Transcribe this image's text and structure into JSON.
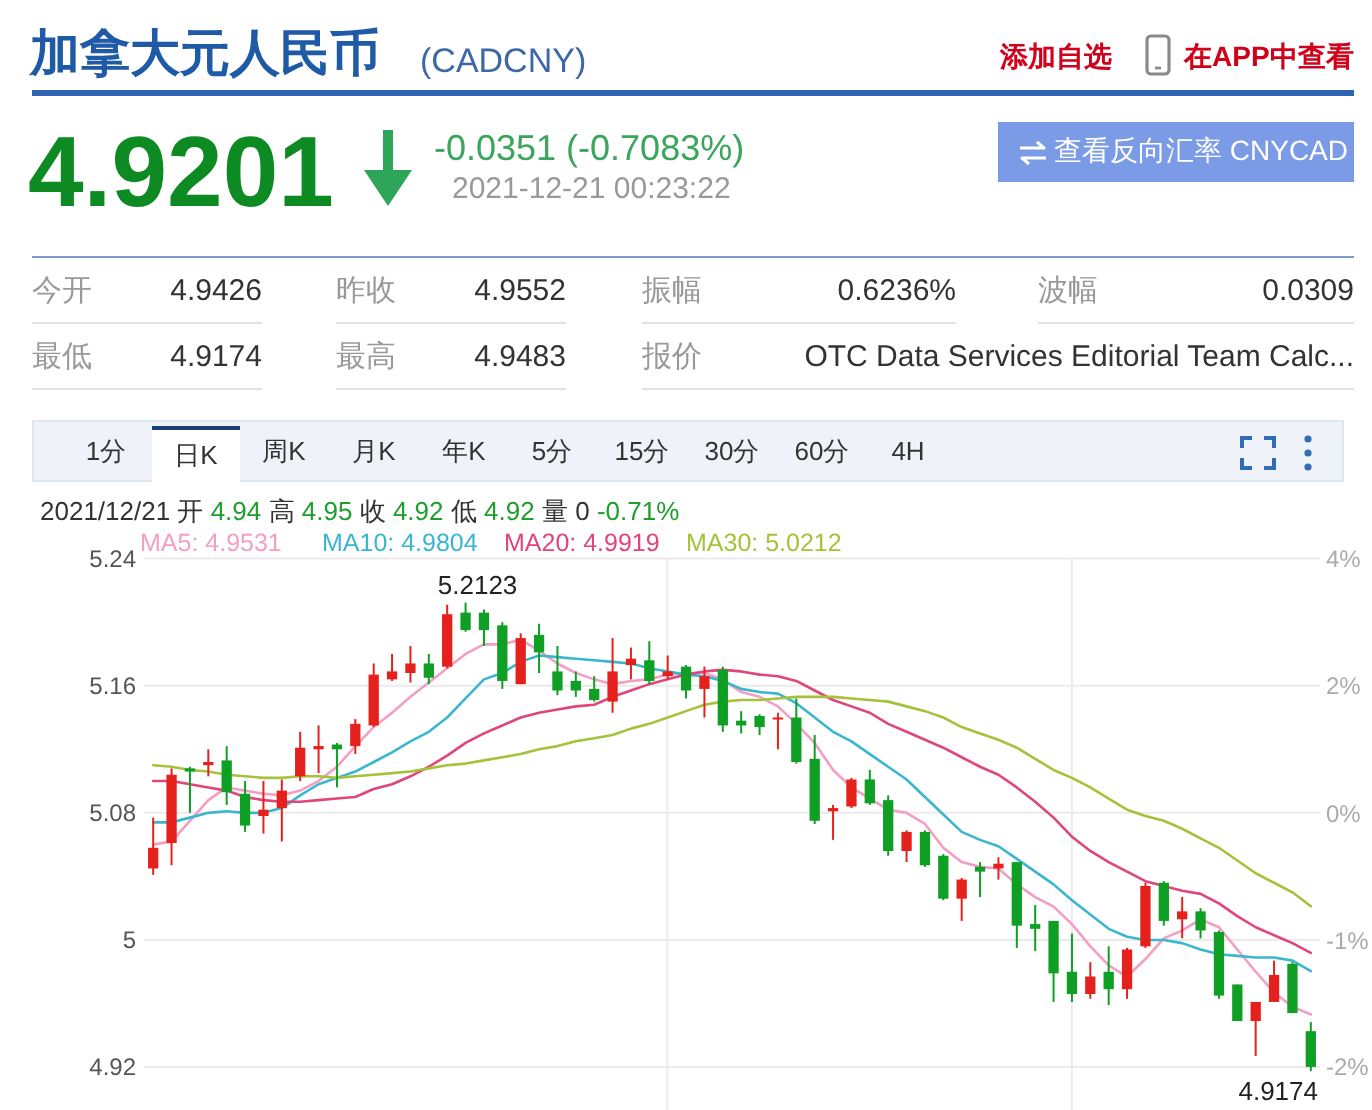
{
  "chart_data": {
    "type": "candlestick",
    "title": "加拿大元人民币",
    "subtitle": "(CADCNY)",
    "categories": [
      null,
      null,
      null,
      null,
      null,
      null,
      null,
      null,
      null,
      null,
      null,
      null,
      null,
      null,
      null,
      null,
      null,
      null,
      null,
      null,
      null,
      null,
      null,
      null,
      null,
      null,
      null,
      null,
      null,
      null,
      null,
      null,
      null,
      null,
      null,
      null,
      null,
      null,
      null,
      null,
      null,
      null,
      null,
      null,
      null,
      null,
      null,
      null,
      null,
      null,
      null,
      null,
      null,
      null,
      null,
      null,
      null,
      null,
      null,
      null,
      null,
      null,
      null,
      null
    ],
    "ohlc": [
      [
        5.045,
        5.077,
        5.041,
        5.058
      ],
      [
        5.061,
        5.108,
        5.047,
        5.104
      ],
      [
        5.108,
        5.109,
        5.08,
        5.106
      ],
      [
        5.11,
        5.12,
        5.103,
        5.112
      ],
      [
        5.113,
        5.122,
        5.085,
        5.093
      ],
      [
        5.092,
        5.1,
        5.068,
        5.072
      ],
      [
        5.078,
        5.1,
        5.067,
        5.082
      ],
      [
        5.083,
        5.101,
        5.062,
        5.094
      ],
      [
        5.103,
        5.131,
        5.1,
        5.121
      ],
      [
        5.12,
        5.135,
        5.105,
        5.122
      ],
      [
        5.123,
        5.124,
        5.096,
        5.12
      ],
      [
        5.122,
        5.139,
        5.117,
        5.136
      ],
      [
        5.135,
        5.174,
        5.134,
        5.167
      ],
      [
        5.164,
        5.18,
        5.163,
        5.169
      ],
      [
        5.168,
        5.185,
        5.162,
        5.174
      ],
      [
        5.174,
        5.18,
        5.161,
        5.165
      ],
      [
        5.172,
        5.211,
        5.171,
        5.205
      ],
      [
        5.206,
        5.2123,
        5.194,
        5.195
      ],
      [
        5.206,
        5.208,
        5.185,
        5.195
      ],
      [
        5.198,
        5.2,
        5.158,
        5.163
      ],
      [
        5.161,
        5.193,
        5.161,
        5.19
      ],
      [
        5.192,
        5.199,
        5.168,
        5.181
      ],
      [
        5.169,
        5.185,
        5.154,
        5.157
      ],
      [
        5.163,
        5.169,
        5.153,
        5.157
      ],
      [
        5.158,
        5.166,
        5.15,
        5.151
      ],
      [
        5.15,
        5.19,
        5.143,
        5.169
      ],
      [
        5.173,
        5.184,
        5.164,
        5.177
      ],
      [
        5.176,
        5.188,
        5.161,
        5.163
      ],
      [
        5.166,
        5.179,
        5.164,
        5.169
      ],
      [
        5.172,
        5.173,
        5.152,
        5.157
      ],
      [
        5.158,
        5.172,
        5.14,
        5.166
      ],
      [
        5.17,
        5.172,
        5.131,
        5.135
      ],
      [
        5.138,
        5.144,
        5.13,
        5.135
      ],
      [
        5.141,
        5.142,
        5.129,
        5.134
      ],
      [
        5.139,
        5.143,
        5.12,
        5.14
      ],
      [
        5.14,
        5.152,
        5.111,
        5.112
      ],
      [
        5.114,
        5.129,
        5.073,
        5.075
      ],
      [
        5.081,
        5.085,
        5.063,
        5.083
      ],
      [
        5.084,
        5.102,
        5.083,
        5.101
      ],
      [
        5.101,
        5.107,
        5.085,
        5.086
      ],
      [
        5.088,
        5.091,
        5.053,
        5.056
      ],
      [
        5.056,
        5.069,
        5.049,
        5.068
      ],
      [
        5.068,
        5.069,
        5.046,
        5.047
      ],
      [
        5.053,
        5.054,
        5.025,
        5.026
      ],
      [
        5.026,
        5.039,
        5.012,
        5.038
      ],
      [
        5.046,
        5.049,
        5.027,
        5.043
      ],
      [
        5.045,
        5.052,
        5.038,
        5.048
      ],
      [
        5.049,
        5.049,
        4.995,
        5.009
      ],
      [
        5.01,
        5.022,
        4.993,
        5.007
      ],
      [
        5.012,
        5.012,
        4.961,
        4.979
      ],
      [
        4.98,
        5.004,
        4.961,
        4.966
      ],
      [
        4.966,
        4.986,
        4.963,
        4.977
      ],
      [
        4.98,
        4.996,
        4.959,
        4.969
      ],
      [
        4.969,
        4.995,
        4.963,
        4.994
      ],
      [
        4.996,
        5.036,
        4.995,
        5.034
      ],
      [
        5.036,
        5.037,
        5.009,
        5.012
      ],
      [
        5.013,
        5.027,
        5.001,
        5.018
      ],
      [
        5.018,
        5.02,
        5.001,
        5.006
      ],
      [
        5.005,
        5.006,
        4.963,
        4.965
      ],
      [
        4.972,
        4.972,
        4.949,
        4.949
      ],
      [
        4.949,
        4.961,
        4.927,
        4.961
      ],
      [
        4.961,
        4.987,
        4.961,
        4.978
      ],
      [
        4.985,
        4.986,
        4.954,
        4.954
      ],
      [
        4.9426,
        4.9483,
        4.9174,
        4.9201
      ]
    ],
    "colors": [
      "#e5211d",
      "#e5211d",
      "#0e9f24",
      "#e5211d",
      "#0e9f24",
      "#0e9f24",
      "#e5211d",
      "#e5211d",
      "#e5211d",
      "#e5211d",
      "#0e9f24",
      "#e5211d",
      "#e5211d",
      "#e5211d",
      "#e5211d",
      "#0e9f24",
      "#e5211d",
      "#0e9f24",
      "#0e9f24",
      "#0e9f24",
      "#e5211d",
      "#0e9f24",
      "#0e9f24",
      "#0e9f24",
      "#0e9f24",
      "#e5211d",
      "#e5211d",
      "#0e9f24",
      "#e5211d",
      "#0e9f24",
      "#e5211d",
      "#0e9f24",
      "#0e9f24",
      "#0e9f24",
      "#e5211d",
      "#0e9f24",
      "#0e9f24",
      "#e5211d",
      "#e5211d",
      "#0e9f24",
      "#0e9f24",
      "#e5211d",
      "#0e9f24",
      "#0e9f24",
      "#e5211d",
      "#0e9f24",
      "#e5211d",
      "#0e9f24",
      "#0e9f24",
      "#0e9f24",
      "#0e9f24",
      "#e5211d",
      "#0e9f24",
      "#e5211d",
      "#e5211d",
      "#0e9f24",
      "#e5211d",
      "#0e9f24",
      "#0e9f24",
      "#0e9f24",
      "#e5211d",
      "#e5211d",
      "#0e9f24",
      "#0e9f24"
    ],
    "series": [
      {
        "type": "line",
        "name": "MA5: 4.9531",
        "color": "#f29fc3",
        "values": [
          5.06,
          5.062,
          5.075,
          5.088,
          5.096,
          5.094,
          5.092,
          5.091,
          5.094,
          5.1,
          5.109,
          5.122,
          5.134,
          5.143,
          5.153,
          5.162,
          5.171,
          5.18,
          5.186,
          5.186,
          5.189,
          5.182,
          5.174,
          5.168,
          5.164,
          5.161,
          5.163,
          5.164,
          5.167,
          5.168,
          5.168,
          5.164,
          5.156,
          5.153,
          5.147,
          5.136,
          5.124,
          5.107,
          5.096,
          5.089,
          5.082,
          5.08,
          5.073,
          5.058,
          5.049,
          5.046,
          5.045,
          5.035,
          5.027,
          5.021,
          5.01,
          4.996,
          4.984,
          4.977,
          4.988,
          5.001,
          5.006,
          5.013,
          5.008,
          4.994,
          4.98,
          4.967,
          4.958,
          4.9531
        ]
      },
      {
        "type": "line",
        "name": "MA10: 4.9804",
        "color": "#3bb6cf",
        "values": [
          5.074,
          5.074,
          5.077,
          5.08,
          5.081,
          5.08,
          5.08,
          5.083,
          5.091,
          5.098,
          5.102,
          5.106,
          5.112,
          5.118,
          5.125,
          5.131,
          5.14,
          5.152,
          5.164,
          5.168,
          5.175,
          5.179,
          5.178,
          5.177,
          5.176,
          5.175,
          5.174,
          5.171,
          5.169,
          5.167,
          5.166,
          5.163,
          5.158,
          5.156,
          5.155,
          5.149,
          5.14,
          5.131,
          5.125,
          5.117,
          5.109,
          5.101,
          5.09,
          5.079,
          5.068,
          5.063,
          5.059,
          5.051,
          5.043,
          5.035,
          5.025,
          5.016,
          5.007,
          5.002,
          5.0,
          5.0,
          4.998,
          4.994,
          4.991,
          4.99,
          4.989,
          4.989,
          4.987,
          4.9804
        ]
      },
      {
        "type": "line",
        "name": "MA20: 4.9919",
        "color": "#e0457b",
        "values": [
          5.1,
          5.1,
          5.098,
          5.096,
          5.094,
          5.09,
          5.088,
          5.087,
          5.087,
          5.088,
          5.089,
          5.09,
          5.095,
          5.098,
          5.103,
          5.109,
          5.116,
          5.124,
          5.13,
          5.135,
          5.14,
          5.143,
          5.145,
          5.147,
          5.148,
          5.153,
          5.157,
          5.161,
          5.164,
          5.167,
          5.169,
          5.17,
          5.169,
          5.167,
          5.166,
          5.163,
          5.157,
          5.151,
          5.147,
          5.143,
          5.136,
          5.131,
          5.126,
          5.121,
          5.115,
          5.109,
          5.104,
          5.096,
          5.087,
          5.077,
          5.065,
          5.056,
          5.049,
          5.043,
          5.037,
          5.034,
          5.031,
          5.029,
          5.023,
          5.015,
          5.008,
          5.003,
          4.998,
          4.9919
        ]
      },
      {
        "type": "line",
        "name": "MA30: 5.0212",
        "color": "#a5c23a",
        "values": [
          5.11,
          5.109,
          5.107,
          5.106,
          5.104,
          5.103,
          5.102,
          5.102,
          5.103,
          5.103,
          5.102,
          5.103,
          5.104,
          5.105,
          5.106,
          5.108,
          5.11,
          5.111,
          5.113,
          5.115,
          5.117,
          5.12,
          5.122,
          5.125,
          5.127,
          5.129,
          5.133,
          5.136,
          5.14,
          5.144,
          5.148,
          5.15,
          5.151,
          5.151,
          5.152,
          5.153,
          5.153,
          5.153,
          5.152,
          5.151,
          5.15,
          5.147,
          5.144,
          5.14,
          5.134,
          5.13,
          5.126,
          5.121,
          5.114,
          5.107,
          5.102,
          5.096,
          5.089,
          5.082,
          5.078,
          5.075,
          5.07,
          5.064,
          5.058,
          5.05,
          5.042,
          5.036,
          5.03,
          5.0212
        ]
      }
    ],
    "ylim": [
      4.893,
      5.24
    ],
    "yticks": [
      4.92,
      5,
      5.08,
      5.16,
      5.24
    ],
    "y2lim": [
      -3.0,
      3.51
    ],
    "y2ticks": [
      {
        "value": -2.49,
        "label": "-2%"
      },
      {
        "value": -1.0,
        "label": "-1%"
      },
      {
        "value": 0.49,
        "label": "0%"
      },
      {
        "value": 2.0,
        "label": "2%"
      },
      {
        "value": 3.51,
        "label": "4%"
      }
    ],
    "grid": "y",
    "legend": "top left",
    "annotations": [
      "添加自选",
      "在APP中查看",
      "4.9201",
      "-0.0351 (-0.7083%)",
      "2021-12-21 00:23:22",
      "查看反向汇率 CNYCAD",
      "今开",
      "4.9426",
      "昨收",
      "4.9552",
      "振幅",
      "0.6236%",
      "波幅",
      "0.0309",
      "最低",
      "4.9174",
      "最高",
      "4.9483",
      "报价",
      "OTC Data Services Editorial Team Calc...",
      "1分",
      "日K",
      "周K",
      "月K",
      "年K",
      "5分",
      "15分",
      "30分",
      "60分",
      "4H",
      "2021/12/21 开 4.94 高 4.95 收 4.92 低 4.92 量 0 -0.71%",
      {
        "text": "5.2123",
        "y": 5.2123
      },
      "4.9174"
    ]
  }
}
